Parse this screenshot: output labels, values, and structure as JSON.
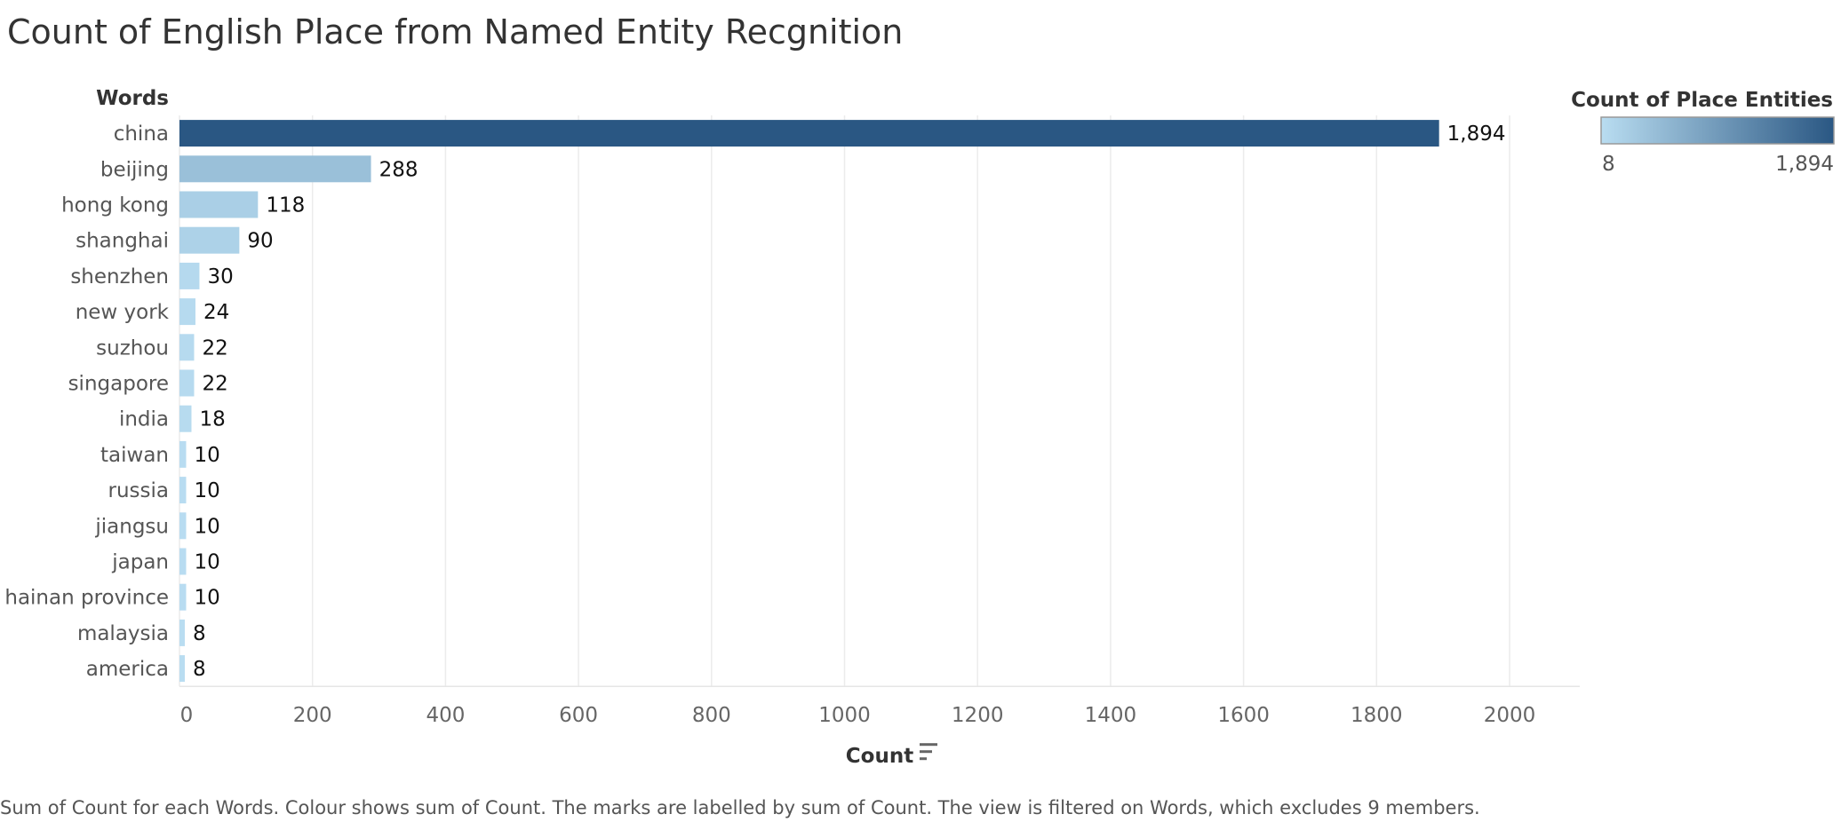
{
  "chart_data": {
    "type": "bar",
    "orientation": "horizontal",
    "title": "Count of English Place from Named Entity Recgnition",
    "ylabel": "Words",
    "xlabel": "Count",
    "categories": [
      "china",
      "beijing",
      "hong kong",
      "shanghai",
      "shenzhen",
      "new york",
      "suzhou",
      "singapore",
      "india",
      "taiwan",
      "russia",
      "jiangsu",
      "japan",
      "hainan province",
      "malaysia",
      "america"
    ],
    "values": [
      1894,
      288,
      118,
      90,
      30,
      24,
      22,
      22,
      18,
      10,
      10,
      10,
      10,
      10,
      8,
      8
    ],
    "data_labels": [
      "1,894",
      "288",
      "118",
      "90",
      "30",
      "24",
      "22",
      "22",
      "18",
      "10",
      "10",
      "10",
      "10",
      "10",
      "8",
      "8"
    ],
    "xlim": [
      0,
      2000
    ],
    "xticks": [
      0,
      200,
      400,
      600,
      800,
      1000,
      1200,
      1400,
      1600,
      1800,
      2000
    ],
    "grid": "vertical",
    "sort_icon": "sort-descending-icon",
    "legend": {
      "title": "Count of Place Entities",
      "type": "color-gradient",
      "min_label": "8",
      "max_label": "1,894",
      "min_value": 8,
      "max_value": 1894,
      "color_min": "#b9ddf1",
      "color_max": "#2a5783",
      "placement": "top-right"
    },
    "caption": "Sum of Count for each Words.  Colour shows sum of Count.  The marks are labelled by sum of Count. The view is filtered on Words, which excludes 9 members."
  }
}
